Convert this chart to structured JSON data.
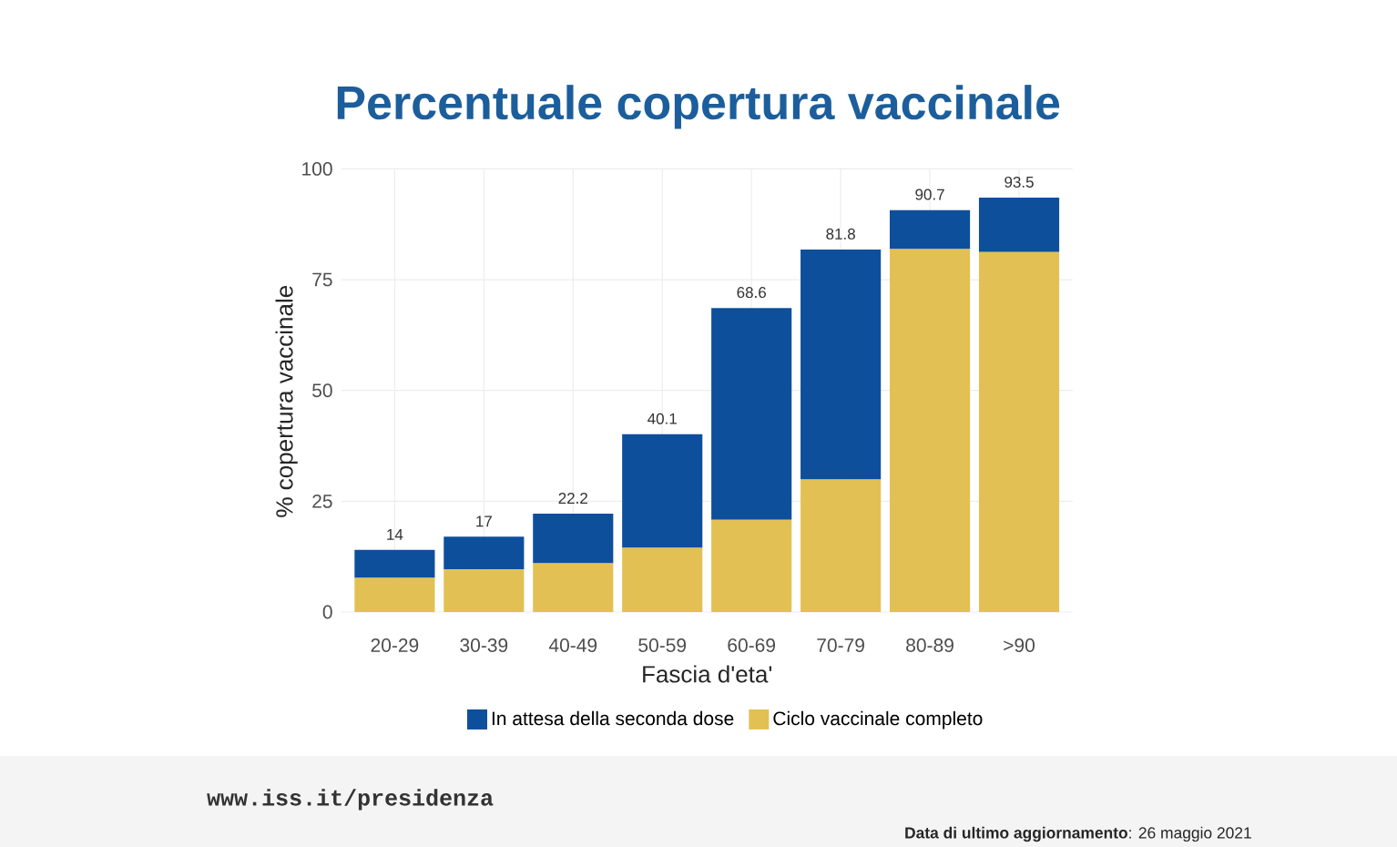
{
  "chart_data": {
    "type": "bar",
    "title": "Percentuale copertura vaccinale",
    "xlabel": "Fascia d'eta'",
    "ylabel": "% copertura vaccinale",
    "categories": [
      "20-29",
      "30-39",
      "40-49",
      "50-59",
      "60-69",
      "70-79",
      "80-89",
      ">90"
    ],
    "stacked": true,
    "series": [
      {
        "name": "Ciclo vaccinale completo",
        "color": "#e2c054",
        "values": [
          7.7,
          9.6,
          11,
          14.5,
          20.8,
          29.9,
          81.9,
          81.2
        ]
      },
      {
        "name": "In attesa della seconda dose",
        "color": "#0e4f9b",
        "values": [
          6.3,
          7.4,
          11.2,
          25.6,
          47.8,
          51.9,
          8.8,
          12.3
        ]
      }
    ],
    "totals": [
      "14",
      "17",
      "22.2",
      "40.1",
      "68.6",
      "81.8",
      "90.7",
      "93.5"
    ],
    "ylim": [
      0,
      100
    ],
    "yticks": [
      0,
      25,
      50,
      75,
      100
    ],
    "grid": true,
    "legend": "bottom",
    "annotations": [
      "www.iss.it/presidenza",
      "**Data di ultimo aggiornamento**: 26 maggio 2021"
    ]
  }
}
